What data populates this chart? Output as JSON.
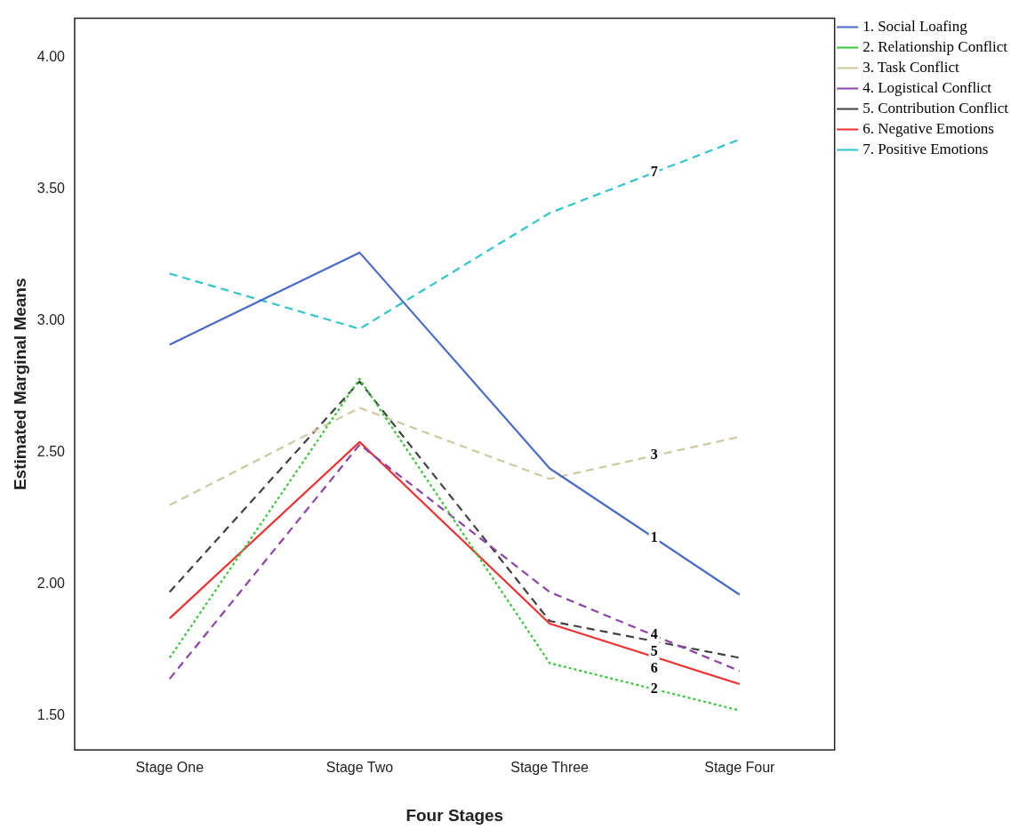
{
  "chart_data": {
    "type": "line",
    "xlabel": "Four Stages",
    "ylabel": "Estimated Marginal Means",
    "categories": [
      "Stage One",
      "Stage Two",
      "Stage Three",
      "Stage Four"
    ],
    "series": [
      {
        "name": "1. Social Loafing",
        "color": "#4a6bc4",
        "line_style": "solid",
        "values": [
          2.91,
          3.26,
          2.44,
          1.96
        ]
      },
      {
        "name": "2. Relationship Conflict",
        "color": "#3cc43c",
        "line_style": "dotted",
        "values": [
          1.72,
          2.78,
          1.7,
          1.52
        ]
      },
      {
        "name": "3. Task Conflict",
        "color": "#cfc89e",
        "line_style": "dashed",
        "values": [
          2.3,
          2.67,
          2.4,
          2.56
        ]
      },
      {
        "name": "4. Logistical Conflict",
        "color": "#8e44a8",
        "line_style": "dashed",
        "values": [
          1.64,
          2.53,
          1.97,
          1.67
        ]
      },
      {
        "name": "5. Contribution Conflict",
        "color": "#404040",
        "line_style": "dashed",
        "values": [
          1.97,
          2.77,
          1.86,
          1.72
        ]
      },
      {
        "name": "6. Negative Emotions",
        "color": "#f03030",
        "line_style": "solid",
        "values": [
          1.87,
          2.54,
          1.85,
          1.62
        ]
      },
      {
        "name": "7. Positive Emotions",
        "color": "#30c4cc",
        "line_style": "dashed",
        "values": [
          3.18,
          2.97,
          3.41,
          3.69
        ]
      }
    ],
    "annotations": [
      "1",
      "2",
      "3",
      "4",
      "5",
      "6",
      "7"
    ],
    "ylim": [
      1.37,
      4.15
    ],
    "yticks": [
      {
        "value": 1.5,
        "label": "1.50"
      },
      {
        "value": 2,
        "label": "2.00"
      },
      {
        "value": 2.5,
        "label": "2.50"
      },
      {
        "value": 3,
        "label": "3.00"
      },
      {
        "value": 3.5,
        "label": "3.50"
      },
      {
        "value": 4,
        "label": "4.00"
      }
    ],
    "grid": false,
    "legend": "top right",
    "marker": "none"
  }
}
